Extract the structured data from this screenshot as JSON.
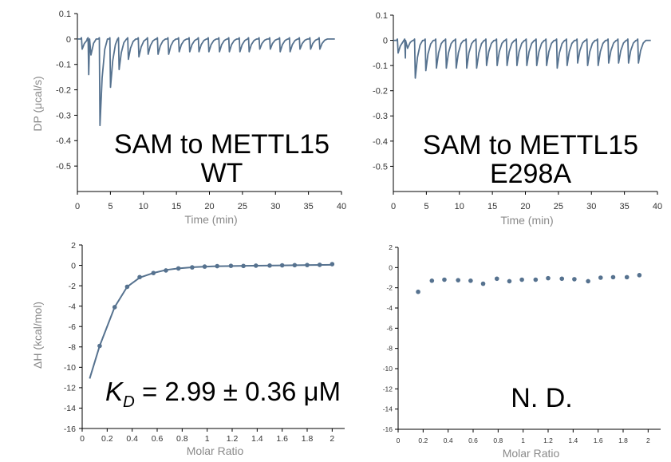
{
  "colors": {
    "series": "#56728f",
    "axis": "#000000",
    "label": "#8a8a8a"
  },
  "chart_data": [
    {
      "type": "line",
      "panel": "top-left",
      "title_lines": [
        "SAM to METTL15",
        "WT"
      ],
      "xlabel": "Time (min)",
      "ylabel": "DP (μcal/s)",
      "xlim": [
        0,
        40
      ],
      "ylim": [
        -0.6,
        0.1
      ],
      "xticks": [
        "0",
        "5",
        "10",
        "15",
        "20",
        "25",
        "30",
        "35",
        "40"
      ],
      "yticks": [
        "0.1",
        "0",
        "-0.1",
        "-0.2",
        "-0.3",
        "-0.4",
        "-0.5"
      ],
      "baseline": {
        "start": [
          0,
          0.0
        ],
        "end": [
          39,
          0.0
        ]
      },
      "injections": [
        {
          "t": 0.6,
          "min": -0.04
        },
        {
          "t": 1.6,
          "min": -0.14
        },
        {
          "t": 3.3,
          "min": -0.34
        },
        {
          "t": 4.9,
          "min": -0.19
        },
        {
          "t": 6.2,
          "min": -0.12
        },
        {
          "t": 7.6,
          "min": -0.08
        },
        {
          "t": 9.2,
          "min": -0.07
        },
        {
          "t": 10.6,
          "min": -0.06
        },
        {
          "t": 12.1,
          "min": -0.06
        },
        {
          "t": 13.7,
          "min": -0.06
        },
        {
          "t": 15.3,
          "min": -0.05
        },
        {
          "t": 16.9,
          "min": -0.05
        },
        {
          "t": 18.3,
          "min": -0.05
        },
        {
          "t": 19.8,
          "min": -0.05
        },
        {
          "t": 21.4,
          "min": -0.05
        },
        {
          "t": 22.9,
          "min": -0.05
        },
        {
          "t": 24.5,
          "min": -0.05
        },
        {
          "t": 25.9,
          "min": -0.05
        },
        {
          "t": 27.5,
          "min": -0.04
        },
        {
          "t": 29.1,
          "min": -0.04
        },
        {
          "t": 30.6,
          "min": -0.05
        },
        {
          "t": 32.1,
          "min": -0.05
        },
        {
          "t": 33.6,
          "min": -0.04
        },
        {
          "t": 35.2,
          "min": -0.04
        },
        {
          "t": 36.6,
          "min": -0.04
        }
      ]
    },
    {
      "type": "line",
      "panel": "top-right",
      "title_lines": [
        "SAM to METTL15",
        "E298A"
      ],
      "xlabel": "Time (min)",
      "ylabel": "",
      "xlim": [
        0,
        40
      ],
      "ylim": [
        -0.6,
        0.1
      ],
      "xticks": [
        "0",
        "5",
        "10",
        "15",
        "20",
        "25",
        "30",
        "35",
        "40"
      ],
      "yticks": [
        "0.1",
        "0",
        "-0.1",
        "-0.2",
        "-0.3",
        "-0.4",
        "-0.5"
      ],
      "baseline": {
        "start": [
          0,
          0.0
        ],
        "end": [
          39,
          0.0
        ]
      },
      "injections": [
        {
          "t": 0.6,
          "min": -0.05
        },
        {
          "t": 1.7,
          "min": -0.07
        },
        {
          "t": 3.2,
          "min": -0.15
        },
        {
          "t": 4.8,
          "min": -0.12
        },
        {
          "t": 6.4,
          "min": -0.11
        },
        {
          "t": 7.9,
          "min": -0.11
        },
        {
          "t": 9.4,
          "min": -0.11
        },
        {
          "t": 11.0,
          "min": -0.11
        },
        {
          "t": 12.5,
          "min": -0.11
        },
        {
          "t": 14.0,
          "min": -0.1
        },
        {
          "t": 15.6,
          "min": -0.1
        },
        {
          "t": 17.1,
          "min": -0.1
        },
        {
          "t": 18.6,
          "min": -0.1
        },
        {
          "t": 20.1,
          "min": -0.1
        },
        {
          "t": 21.6,
          "min": -0.1
        },
        {
          "t": 23.1,
          "min": -0.1
        },
        {
          "t": 24.7,
          "min": -0.11
        },
        {
          "t": 26.2,
          "min": -0.1
        },
        {
          "t": 27.8,
          "min": -0.09
        },
        {
          "t": 29.3,
          "min": -0.1
        },
        {
          "t": 30.9,
          "min": -0.1
        },
        {
          "t": 32.5,
          "min": -0.09
        },
        {
          "t": 34.0,
          "min": -0.09
        },
        {
          "t": 35.5,
          "min": -0.09
        },
        {
          "t": 37.0,
          "min": -0.09
        }
      ]
    },
    {
      "type": "scatter",
      "panel": "bottom-left",
      "annotation": {
        "k": "K",
        "sub": "D",
        "rest": " = 2.99 ± 0.36 μM"
      },
      "xlabel": "Molar Ratio",
      "ylabel": "ΔH (kcal/mol)",
      "xlim": [
        0,
        2.1
      ],
      "ylim": [
        -16,
        2
      ],
      "xticks": [
        "0",
        "0.2",
        "0.4",
        "0.6",
        "0.8",
        "1",
        "1.2",
        "1.4",
        "1.6",
        "1.8",
        "2"
      ],
      "yticks": [
        "2",
        "0",
        "-2",
        "-4",
        "-6",
        "-8",
        "-10",
        "-12",
        "-14",
        "-16"
      ],
      "points": [
        [
          0.14,
          -7.9
        ],
        [
          0.26,
          -4.1
        ],
        [
          0.36,
          -2.1
        ],
        [
          0.46,
          -1.15
        ],
        [
          0.57,
          -0.75
        ],
        [
          0.67,
          -0.5
        ],
        [
          0.77,
          -0.3
        ],
        [
          0.88,
          -0.2
        ],
        [
          0.98,
          -0.12
        ],
        [
          1.08,
          -0.08
        ],
        [
          1.19,
          -0.05
        ],
        [
          1.29,
          -0.06
        ],
        [
          1.39,
          -0.03
        ],
        [
          1.5,
          -0.02
        ],
        [
          1.6,
          0.0
        ],
        [
          1.7,
          0.02
        ],
        [
          1.8,
          0.03
        ],
        [
          1.9,
          0.05
        ],
        [
          2.0,
          0.12
        ]
      ],
      "fit": [
        [
          0.06,
          -11.1
        ],
        [
          0.14,
          -7.9
        ],
        [
          0.26,
          -4.1
        ],
        [
          0.36,
          -2.1
        ],
        [
          0.46,
          -1.2
        ],
        [
          0.57,
          -0.75
        ],
        [
          0.67,
          -0.45
        ],
        [
          0.77,
          -0.3
        ],
        [
          0.9,
          -0.17
        ],
        [
          1.05,
          -0.1
        ],
        [
          1.3,
          -0.04
        ],
        [
          1.6,
          0.0
        ],
        [
          2.0,
          0.05
        ]
      ]
    },
    {
      "type": "scatter",
      "panel": "bottom-right",
      "annotation": {
        "text": "N. D."
      },
      "xlabel": "Molar Ratio",
      "ylabel": "",
      "xlim": [
        0,
        2.1
      ],
      "ylim": [
        -16,
        2
      ],
      "xticks": [
        "0",
        "0.2",
        "0.4",
        "0.6",
        "0.8",
        "1",
        "1.2",
        "1.4",
        "1.6",
        "1.8",
        "2"
      ],
      "yticks": [
        "2",
        "0",
        "-2",
        "-4",
        "-6",
        "-8",
        "-10",
        "-12",
        "-14",
        "-16"
      ],
      "points": [
        [
          0.16,
          -2.4
        ],
        [
          0.27,
          -1.3
        ],
        [
          0.37,
          -1.2
        ],
        [
          0.48,
          -1.25
        ],
        [
          0.58,
          -1.3
        ],
        [
          0.68,
          -1.6
        ],
        [
          0.79,
          -1.1
        ],
        [
          0.89,
          -1.35
        ],
        [
          0.99,
          -1.2
        ],
        [
          1.1,
          -1.2
        ],
        [
          1.2,
          -1.05
        ],
        [
          1.31,
          -1.1
        ],
        [
          1.41,
          -1.15
        ],
        [
          1.52,
          -1.35
        ],
        [
          1.62,
          -1.0
        ],
        [
          1.72,
          -0.95
        ],
        [
          1.83,
          -0.95
        ],
        [
          1.93,
          -0.75
        ]
      ]
    }
  ]
}
